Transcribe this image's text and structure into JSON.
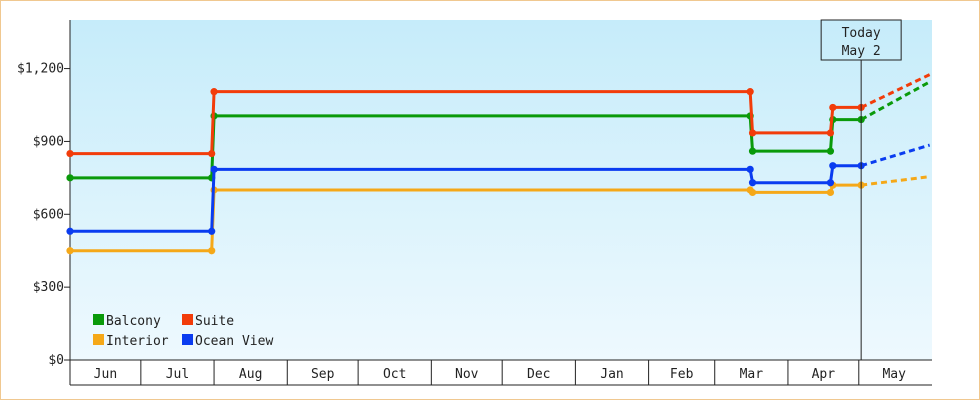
{
  "chart_data": {
    "type": "line",
    "title": "",
    "xlabel": "",
    "ylabel": "",
    "ylim": [
      0,
      1400
    ],
    "y_ticks": [
      0,
      300,
      600,
      900,
      1200
    ],
    "y_tick_labels": [
      "$0",
      "$300",
      "$600",
      "$900",
      "$1,200"
    ],
    "x_range": [
      "2018-06-01",
      "2019-05-31"
    ],
    "x_months": [
      {
        "label": "Jun",
        "start": "2018-06-01",
        "end": "2018-07-01"
      },
      {
        "label": "Jul",
        "start": "2018-07-01",
        "end": "2018-08-01"
      },
      {
        "label": "Aug",
        "start": "2018-08-01",
        "end": "2018-09-01"
      },
      {
        "label": "Sep",
        "start": "2018-09-01",
        "end": "2018-10-01"
      },
      {
        "label": "Oct",
        "start": "2018-10-01",
        "end": "2018-11-01"
      },
      {
        "label": "Nov",
        "start": "2018-11-01",
        "end": "2018-12-01"
      },
      {
        "label": "Dec",
        "start": "2018-12-01",
        "end": "2019-01-01"
      },
      {
        "label": "Jan",
        "start": "2019-01-01",
        "end": "2019-02-01"
      },
      {
        "label": "Feb",
        "start": "2019-02-01",
        "end": "2019-03-01"
      },
      {
        "label": "Mar",
        "start": "2019-03-01",
        "end": "2019-04-01"
      },
      {
        "label": "Apr",
        "start": "2019-04-01",
        "end": "2019-05-01"
      },
      {
        "label": "May",
        "start": "2019-05-01",
        "end": "2019-05-31"
      }
    ],
    "today": {
      "line1": "Today",
      "line2": "May 2",
      "date": "2019-05-02"
    },
    "legend_position": "bottom-left",
    "grid": false,
    "background": [
      "#c6ecfa",
      "#eef9fe"
    ],
    "series": [
      {
        "name": "Balcony",
        "color": "#0a9a0a",
        "x": [
          "2018-06-01",
          "2018-07-31",
          "2018-08-01",
          "2019-03-16",
          "2019-03-17",
          "2019-04-19",
          "2019-04-20",
          "2019-05-02"
        ],
        "y": [
          750,
          750,
          1005,
          1005,
          860,
          860,
          990,
          990
        ],
        "projection": {
          "x": [
            "2019-05-02",
            "2019-05-31"
          ],
          "y": [
            990,
            1145
          ]
        }
      },
      {
        "name": "Suite",
        "color": "#f23c0a",
        "x": [
          "2018-06-01",
          "2018-07-31",
          "2018-08-01",
          "2019-03-16",
          "2019-03-17",
          "2019-04-19",
          "2019-04-20",
          "2019-05-02"
        ],
        "y": [
          850,
          850,
          1105,
          1105,
          935,
          935,
          1040,
          1040
        ],
        "projection": {
          "x": [
            "2019-05-02",
            "2019-05-31"
          ],
          "y": [
            1040,
            1175
          ]
        }
      },
      {
        "name": "Interior",
        "color": "#f5a818",
        "x": [
          "2018-06-01",
          "2018-07-31",
          "2018-08-01",
          "2019-03-16",
          "2019-03-17",
          "2019-04-19",
          "2019-04-20",
          "2019-05-02"
        ],
        "y": [
          450,
          450,
          700,
          700,
          690,
          690,
          720,
          720
        ],
        "projection": {
          "x": [
            "2019-05-02",
            "2019-05-31"
          ],
          "y": [
            720,
            755
          ]
        }
      },
      {
        "name": "Ocean View",
        "color": "#0a3cf0",
        "x": [
          "2018-06-01",
          "2018-07-31",
          "2018-08-01",
          "2019-03-16",
          "2019-03-17",
          "2019-04-19",
          "2019-04-20",
          "2019-05-02"
        ],
        "y": [
          530,
          530,
          785,
          785,
          730,
          730,
          800,
          800
        ],
        "projection": {
          "x": [
            "2019-05-02",
            "2019-05-31"
          ],
          "y": [
            800,
            885
          ]
        }
      }
    ]
  }
}
